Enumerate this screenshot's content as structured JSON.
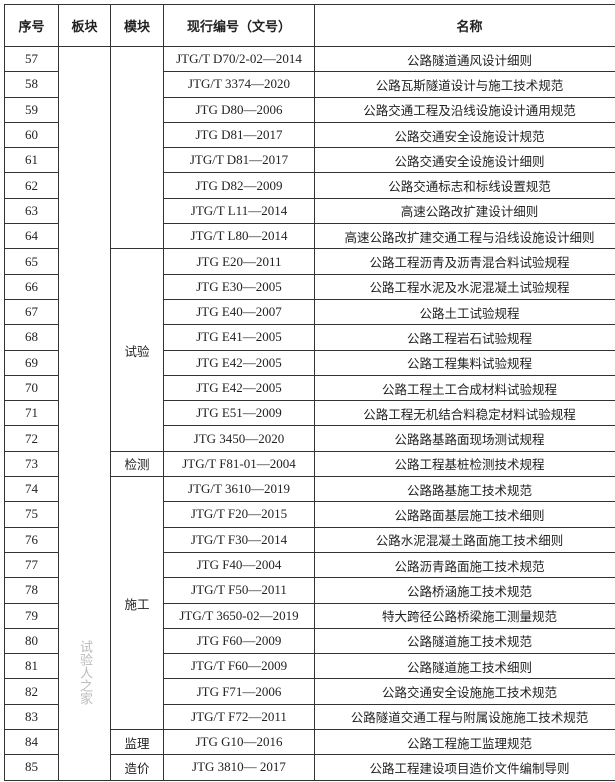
{
  "headers": {
    "no": "序号",
    "block": "板块",
    "module": "模块",
    "code": "现行编号（文号）",
    "name": "名称"
  },
  "rows": [
    {
      "no": "57",
      "code": "JTG/T D70/2-02—2014",
      "name": "公路隧道通风设计细则"
    },
    {
      "no": "58",
      "code": "JTG/T 3374—2020",
      "name": "公路瓦斯隧道设计与施工技术规范"
    },
    {
      "no": "59",
      "code": "JTG D80—2006",
      "name": "公路交通工程及沿线设施设计通用规范"
    },
    {
      "no": "60",
      "code": "JTG D81—2017",
      "name": "公路交通安全设施设计规范"
    },
    {
      "no": "61",
      "code": "JTG/T D81—2017",
      "name": "公路交通安全设施设计细则"
    },
    {
      "no": "62",
      "code": "JTG D82—2009",
      "name": "公路交通标志和标线设置规范"
    },
    {
      "no": "63",
      "code": "JTG/T L11—2014",
      "name": "高速公路改扩建设计细则"
    },
    {
      "no": "64",
      "code": "JTG/T L80—2014",
      "name": "高速公路改扩建交通工程与沿线设施设计细则"
    },
    {
      "no": "65",
      "code": "JTG E20—2011",
      "name": "公路工程沥青及沥青混合料试验规程"
    },
    {
      "no": "66",
      "code": "JTG E30—2005",
      "name": "公路工程水泥及水泥混凝土试验规程"
    },
    {
      "no": "67",
      "code": "JTG E40—2007",
      "name": "公路土工试验规程"
    },
    {
      "no": "68",
      "code": "JTG E41—2005",
      "name": "公路工程岩石试验规程"
    },
    {
      "no": "69",
      "code": "JTG E42—2005",
      "name": "公路工程集料试验规程"
    },
    {
      "no": "70",
      "code": "JTG E42—2005",
      "name": "公路工程土工合成材料试验规程"
    },
    {
      "no": "71",
      "code": "JTG E51—2009",
      "name": "公路工程无机结合料稳定材料试验规程"
    },
    {
      "no": "72",
      "code": "JTG 3450—2020",
      "name": "公路路基路面现场测试规程"
    },
    {
      "no": "73",
      "code": "JTG/T F81-01—2004",
      "name": "公路工程基桩检测技术规程"
    },
    {
      "no": "74",
      "code": "JTG/T 3610—2019",
      "name": "公路路基施工技术规范"
    },
    {
      "no": "75",
      "code": "JTG/T F20—2015",
      "name": "公路路面基层施工技术细则"
    },
    {
      "no": "76",
      "code": "JTG/T F30—2014",
      "name": "公路水泥混凝土路面施工技术细则"
    },
    {
      "no": "77",
      "code": "JTG F40—2004",
      "name": "公路沥青路面施工技术规范"
    },
    {
      "no": "78",
      "code": "JTG/T F50—2011",
      "name": "公路桥涵施工技术规范"
    },
    {
      "no": "79",
      "code": "JTG/T 3650-02—2019",
      "name": "特大跨径公路桥梁施工测量规范"
    },
    {
      "no": "80",
      "code": "JTG F60—2009",
      "name": "公路隧道施工技术规范"
    },
    {
      "no": "81",
      "code": "JTG/T F60—2009",
      "name": "公路隧道施工技术细则"
    },
    {
      "no": "82",
      "code": "JTG F71—2006",
      "name": "公路交通安全设施施工技术规范"
    },
    {
      "no": "83",
      "code": "JTG/T F72—2011",
      "name": "公路隧道交通工程与附属设施施工技术规范"
    },
    {
      "no": "84",
      "code": "JTG G10—2016",
      "name": "公路工程施工监理规范"
    },
    {
      "no": "85",
      "code": "JTG 3810— 2017",
      "name": "公路工程建设项目造价文件编制导则"
    }
  ],
  "modules": [
    {
      "label": "",
      "span": 8
    },
    {
      "label": "试验",
      "span": 8
    },
    {
      "label": "检测",
      "span": 1
    },
    {
      "label": "施工",
      "span": 10
    },
    {
      "label": "监理",
      "span": 1
    },
    {
      "label": "造价",
      "span": 1
    }
  ],
  "block": {
    "label": "",
    "span": 29
  },
  "watermark": "试验人之家"
}
